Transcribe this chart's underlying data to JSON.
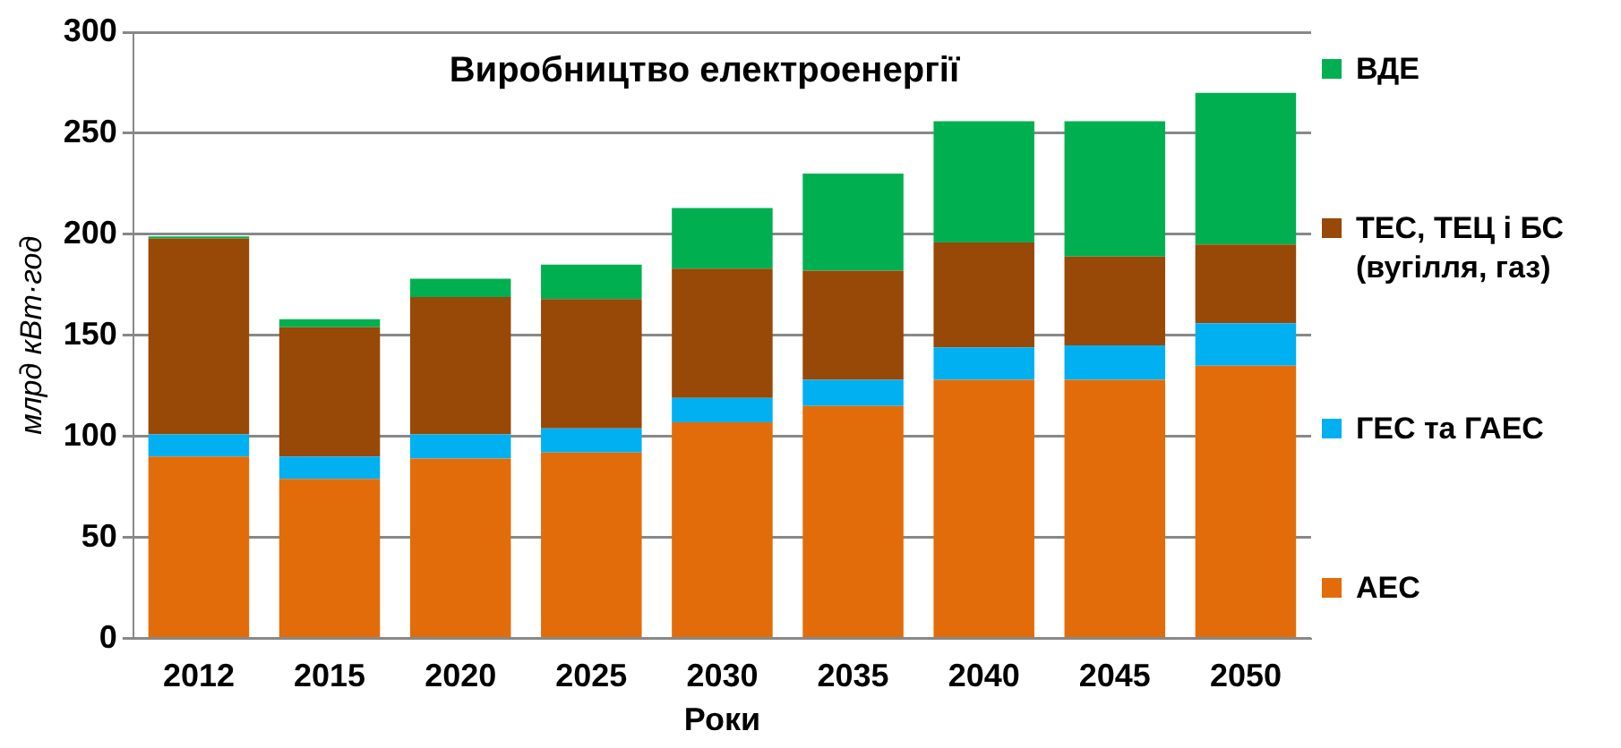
{
  "chart_data": {
    "type": "bar",
    "title": "Виробництво електроенергії",
    "xlabel": "Роки",
    "ylabel": "млрд кВт·год",
    "categories": [
      "2012",
      "2015",
      "2020",
      "2025",
      "2030",
      "2035",
      "2040",
      "2045",
      "2050"
    ],
    "stacked": true,
    "ylim": [
      0,
      300
    ],
    "yticks": [
      0,
      50,
      100,
      150,
      200,
      250,
      300
    ],
    "grid": "y",
    "legend": "right",
    "series": [
      {
        "name": "АЕС",
        "color": "#e36c0a",
        "values": [
          90,
          79,
          89,
          92,
          107,
          115,
          128,
          128,
          135
        ]
      },
      {
        "name": "ГЕС та ГАЕС",
        "color": "#00b0f0",
        "values": [
          11,
          11,
          12,
          12,
          12,
          13,
          16,
          17,
          21
        ]
      },
      {
        "name": "ТЕС, ТЕЦ і БС (вугілля, газ)",
        "color": "#984807",
        "values": [
          97,
          64,
          68,
          64,
          64,
          54,
          52,
          44,
          39
        ]
      },
      {
        "name": "ВДЕ",
        "color": "#00b050",
        "values": [
          1,
          4,
          9,
          17,
          30,
          48,
          60,
          67,
          75
        ]
      }
    ]
  }
}
